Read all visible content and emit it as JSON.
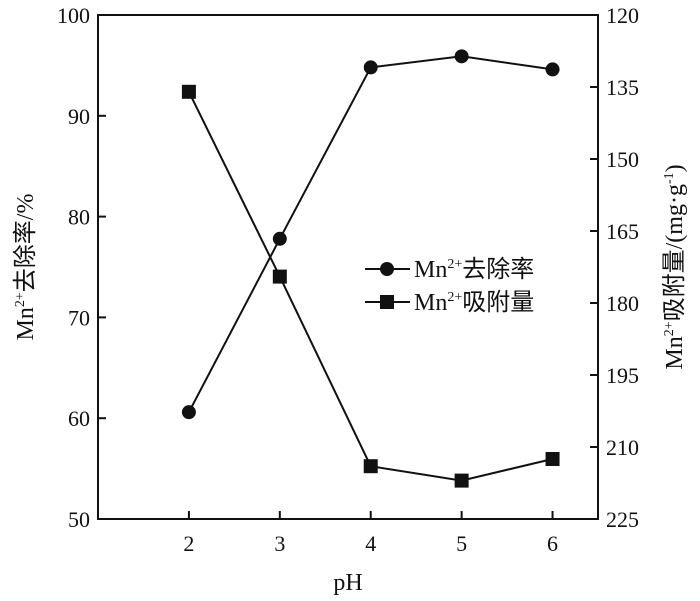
{
  "chart_data": {
    "type": "line",
    "x": [
      2,
      3,
      4,
      5,
      6
    ],
    "xlabel": "pH",
    "xticks": [
      "2",
      "3",
      "4",
      "5",
      "6"
    ],
    "xlim": [
      1.0,
      6.5
    ],
    "ylabel_left": {
      "base": "Mn",
      "sup": "2+",
      "rest": "去除率/%"
    },
    "ylabel_right": {
      "base": "Mn",
      "sup": "2+",
      "rest": "吸附量/(mg·g",
      "sup2": "-1",
      "end": ")"
    },
    "yleft": {
      "ticks": [
        "50",
        "60",
        "70",
        "80",
        "90",
        "100"
      ],
      "lim": [
        50,
        100
      ]
    },
    "yright": {
      "ticks": [
        "120",
        "135",
        "150",
        "165",
        "180",
        "195",
        "210",
        "225"
      ],
      "lim": [
        120,
        225
      ],
      "inverted": true
    },
    "series": [
      {
        "name": {
          "base": "Mn",
          "sup": "2+",
          "rest": "去除率"
        },
        "axis": "left",
        "marker": "circle",
        "values": [
          60.6,
          77.8,
          94.8,
          95.9,
          94.6
        ]
      },
      {
        "name": {
          "base": "Mn",
          "sup": "2+",
          "rest": "吸附量"
        },
        "axis": "right",
        "marker": "square",
        "values": [
          136.0,
          174.5,
          214.0,
          217.0,
          212.5
        ]
      }
    ],
    "legend_position": "center-right",
    "grid": false
  }
}
